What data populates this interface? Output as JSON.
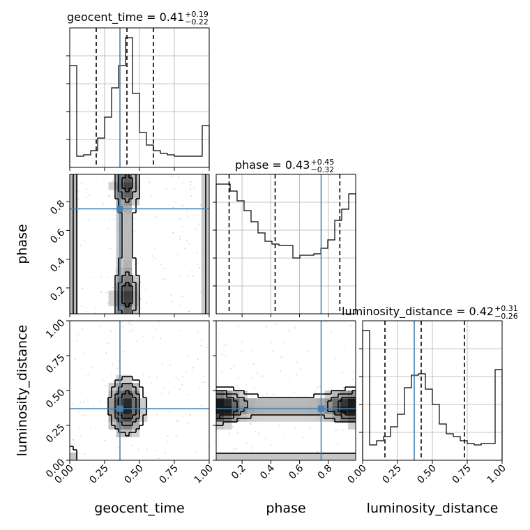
{
  "colors": {
    "truth": "#4682b4",
    "hist": "#000000",
    "grid": "#b0b0b0",
    "points": "#b4b4b4"
  },
  "titles": {
    "geocent_time": {
      "name": "geocent_time",
      "median": "0.41",
      "plus": "+0.19",
      "minus": "−0.22"
    },
    "phase": {
      "name": "phase",
      "median": "0.43",
      "plus": "+0.45",
      "minus": "−0.32"
    },
    "luminosity_distance": {
      "name": "luminosity_distance",
      "median": "0.42",
      "plus": "+0.31",
      "minus": "−0.26"
    }
  },
  "axis_labels": {
    "x0": "geocent_time",
    "x1": "phase",
    "x2": "luminosity_distance",
    "y1": "phase",
    "y2": "luminosity_distance"
  },
  "chart_data": {
    "type": "corner",
    "parameters": [
      "geocent_time",
      "phase",
      "luminosity_distance"
    ],
    "ranges": {
      "geocent_time": [
        0,
        1
      ],
      "phase": [
        0.02,
        0.99
      ],
      "luminosity_distance": [
        0,
        1
      ]
    },
    "ticks": {
      "geocent_time": [
        "0.00",
        "0.25",
        "0.50",
        "0.75",
        "1.00"
      ],
      "phase": [
        "0.2",
        "0.4",
        "0.6",
        "0.8"
      ],
      "luminosity_distance": [
        "0.00",
        "0.25",
        "0.50",
        "0.75",
        "1.00"
      ]
    },
    "truths": {
      "geocent_time": 0.36,
      "phase": 0.75,
      "luminosity_distance": 0.37
    },
    "quantiles": {
      "geocent_time": [
        0.19,
        0.41,
        0.6
      ],
      "phase": [
        0.11,
        0.43,
        0.88
      ],
      "luminosity_distance": [
        0.16,
        0.42,
        0.73
      ]
    },
    "histograms": {
      "geocent_time": [
        0.73,
        0.08,
        0.09,
        0.12,
        0.21,
        0.36,
        0.57,
        0.73,
        0.93,
        0.53,
        0.25,
        0.16,
        0.12,
        0.1,
        0.09,
        0.08,
        0.08,
        0.08,
        0.08,
        0.3
      ],
      "phase": [
        0.93,
        0.93,
        0.88,
        0.81,
        0.74,
        0.66,
        0.58,
        0.52,
        0.5,
        0.49,
        0.49,
        0.4,
        0.42,
        0.42,
        0.43,
        0.47,
        0.53,
        0.67,
        0.75,
        0.86
      ],
      "luminosity_distance": [
        0.93,
        0.11,
        0.14,
        0.17,
        0.24,
        0.33,
        0.52,
        0.61,
        0.62,
        0.51,
        0.4,
        0.26,
        0.19,
        0.17,
        0.14,
        0.12,
        0.11,
        0.12,
        0.12,
        0.65
      ]
    }
  }
}
